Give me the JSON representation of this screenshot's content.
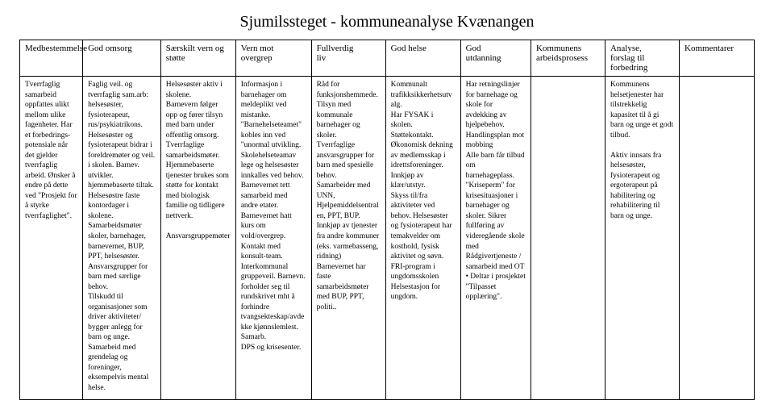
{
  "title": "Sjumilssteget - kommuneanalyse Kvænangen",
  "columns": [
    {
      "label": "Medbestemmelse",
      "width": "8.4%"
    },
    {
      "label": "God omsorg",
      "width": "10.4%"
    },
    {
      "label": "Særskilt vern og\nstøtte",
      "width": "10%"
    },
    {
      "label": "Vern mot\novergrep",
      "width": "10.1%"
    },
    {
      "label": "Fullverdig\nliv",
      "width": "9.9%"
    },
    {
      "label": "God helse",
      "width": "10%"
    },
    {
      "label": "God\nutdanning",
      "width": "9.4%"
    },
    {
      "label": "Kommunens\narbeidsprosess",
      "width": "9.9%"
    },
    {
      "label": "Analyse,\nforslag til\nforbedring",
      "width": "9.9%"
    },
    {
      "label": "Kommentarer",
      "width": "10%"
    }
  ],
  "row": [
    "Tverrfaglig samarbeid oppfattes ulikt mellom ulike fagenheter. Har et forbedrings-potensiale når det gjelder tverrfaglig arbeid. Ønsker å endre på dette ved \"Prosjekt for å styrke tverrfaglighet\".",
    "Faglig veil. og tverrfaglig sam.arb: helsesøster, fysioterapeut, rus/psykiatrikons. Helsesøster og fysioterapeut bidrar i foreldremøter og veil. i skolen. Barnev. utvikler. hjemmebaserte tiltak. Helsesøstre faste kontordager i skolene. Samarbeidsmøter skoler, barnehager, barnevernet, BUP, PPT, helsesøster. Ansvarsgrupper for barn med særlige behov.\nTilskudd til organisasjoner som driver aktiviteter/ bygger anlegg for barn og unge.\nSamarbeid med grendelag og foreninger, eksempelvis mental helse.",
    "Helsesøster aktiv i skolene.\nBarnevern følger opp og fører tilsyn med barn under offentlig omsorg.\nTverrfaglige samarbeidsmøter.\nHjemmebaserte tjenester brukes som støtte for kontakt med biologisk familie og tidligere nettverk.\n\nAnsvarsgruppemøter",
    "Informasjon i barnehager om meldeplikt ved mistanke.\n\"Barnehelseteamet\" kobles inn ved \"unormal utvikling. Skolehelseteamav lege og helsesøster innkalles ved behov. Barnevernet tett samarbeid med andre etater.\nBarnevernet hatt kurs om vold/overgrep. Kontakt med konsult-team. Interkommunal gruppeveil. Barnevn. forholder seg til rundskrivet mht å forhindre tvangsekteskap/avdekke kjønnslemlest. Samarb.\nDPS og krisesenter.",
    "Råd for funksjonshemmede.\nTilsyn med kommunale barnehager og skoler.\nTverrfaglige ansvarsgrupper for barn med spesielle behov.\nSamarbeider med UNN, Hjelpemiddelsentralen, PPT, BUP.\nInnkjøp av tjenester fra andre kommuner (eks. varmebasseng, ridning)\nBarnevernet har faste samarbeidsmøter med BUP, PPT, politi..",
    "Kommunalt trafikksikkerhetsutvalg.\nHar FYSAK i skolen. Støttekontakt. Økonomisk dekning av medlemsskap i idrettsforeninger.\nInnkjøp av klær/utstyr.\nSkyss til/fra aktiviteter ved behov. Helsesøster og fysioterapeut har temakvelder om kosthold, fysisk aktivitet og søvn.\nFRI-program i ungdomsskolen\nHelsestasjon for ungdom.",
    "Har retningslinjer for barnehage og skole for avdekking av hjelpebehov. Handlingsplan mot mobbing\nAlle barn får tilbud om barnehageplass. \"Kriseperm\" for krisesituasjoner i barnehager og skoler. Sikrer fullføring av videregående skole med Rådgivertjeneste / samarbeid med OT • Deltar i prosjektet \"Tilpasset opplæring\".",
    "",
    "Kommunens helsetjenester har tilstrekkelig kapasitet til å gi barn og unge et godt tilbud.\n\nAktiv innsats fra helsesøster, fysioterapeut og ergoterapeut på habilitering og rehabilitering til barn og unge.",
    ""
  ]
}
